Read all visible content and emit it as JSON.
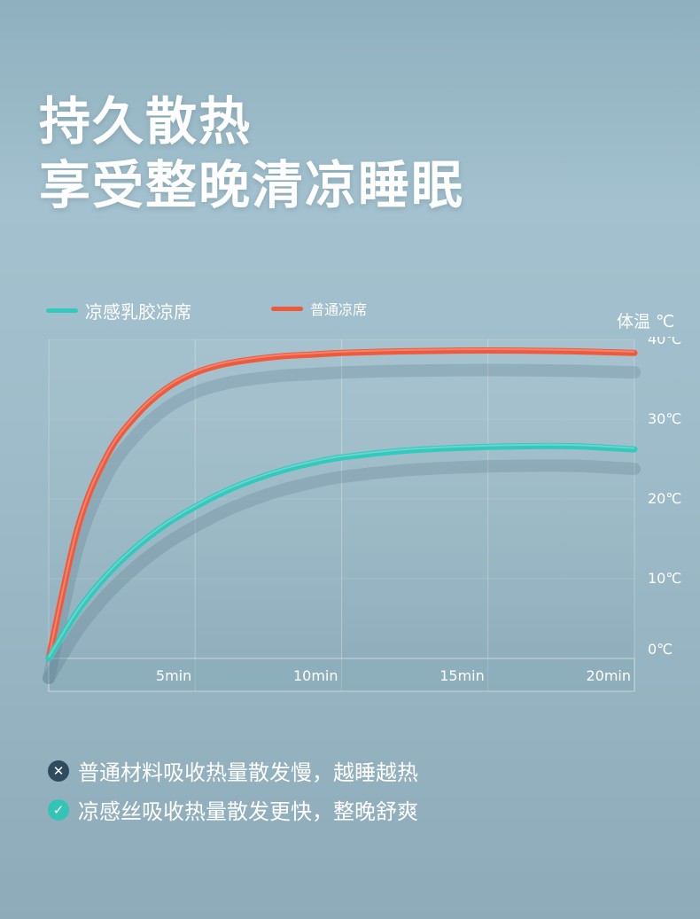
{
  "headline": {
    "line1": "持久散热",
    "line2": "享受整晚清凉睡眠"
  },
  "legend": {
    "cool": {
      "label": "凉感乳胶凉席",
      "color": "#34c9bd"
    },
    "normal": {
      "label": "普通凉席",
      "color": "#ef5a3c"
    }
  },
  "unit_label": "体温 ℃",
  "chart_data": {
    "type": "line",
    "x": [
      0,
      1,
      2,
      3,
      4,
      5,
      6,
      7,
      8,
      9,
      10,
      12,
      14,
      16,
      18,
      20
    ],
    "x_tick_labels": [
      "5min",
      "10min",
      "15min",
      "20min"
    ],
    "x_ticks": [
      5,
      10,
      15,
      20
    ],
    "y_ticks": [
      0,
      10,
      20,
      30,
      40
    ],
    "y_tick_labels": [
      "0℃",
      "10℃",
      "20℃",
      "30℃",
      "40℃"
    ],
    "xlim": [
      0,
      20
    ],
    "ylim": [
      0,
      40
    ],
    "series": [
      {
        "name": "普通凉席",
        "color": "#ef5a3c",
        "values": [
          0,
          16.5,
          25.5,
          30.5,
          33.8,
          35.8,
          36.9,
          37.5,
          37.9,
          38.1,
          38.3,
          38.5,
          38.6,
          38.6,
          38.5,
          38.3
        ]
      },
      {
        "name": "凉感乳胶凉席",
        "color": "#34c9bd",
        "values": [
          0,
          6,
          10.5,
          14,
          16.8,
          19,
          20.9,
          22.4,
          23.6,
          24.5,
          25.2,
          26,
          26.4,
          26.6,
          26.6,
          26.2
        ]
      }
    ]
  },
  "bullets": [
    {
      "icon": "cross-icon",
      "symbol": "✕",
      "text": "普通材料吸收热量散发慢，越睡越热",
      "color": "#2f4b5e"
    },
    {
      "icon": "check-icon",
      "symbol": "✓",
      "text": "凉感丝吸收热量散发更快，整晚舒爽",
      "color": "#35c3b5"
    }
  ]
}
